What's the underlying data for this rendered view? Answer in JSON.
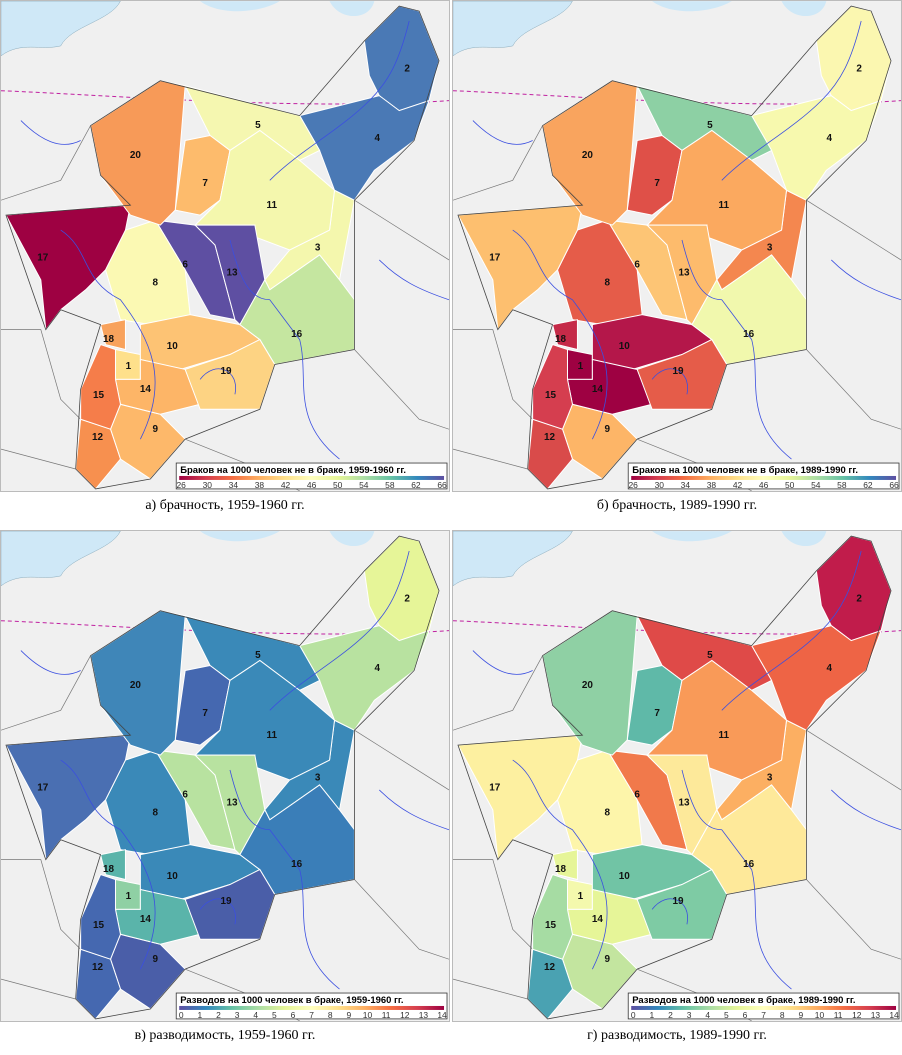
{
  "panels": [
    {
      "caption": "а) брачность, 1959-1960 гг.",
      "legend": {
        "title": "Браков на 1000 человек не в браке, 1959-1960 гг.",
        "ticks": [
          "26",
          "30",
          "34",
          "38",
          "42",
          "46",
          "50",
          "54",
          "58",
          "62",
          "66"
        ],
        "scale": "red-to-blue"
      },
      "regions": {
        "1": "#fee08b",
        "2": "#4a79b5",
        "3": "#f4f7ad",
        "4": "#4a79b5",
        "5": "#f5f7b0",
        "6": "#5e4fa2",
        "7": "#fdbb6c",
        "8": "#fbf9b3",
        "9": "#fdb86a",
        "10": "#fdc374",
        "11": "#f4f7ad",
        "12": "#f7904f",
        "13": "#5e4fa2",
        "14": "#fdb567",
        "15": "#f57d4a",
        "16": "#c5e6a0",
        "17": "#9e0142",
        "18": "#f8a25c",
        "19": "#fdd383",
        "20": "#f79a58"
      }
    },
    {
      "caption": "б) брачность, 1989-1990 гг.",
      "legend": {
        "title": "Браков на 1000 человек не в браке, 1989-1990 гг.",
        "ticks": [
          "26",
          "30",
          "34",
          "38",
          "42",
          "46",
          "50",
          "54",
          "58",
          "62",
          "66"
        ],
        "scale": "red-to-blue"
      },
      "regions": {
        "1": "#9e0142",
        "2": "#fbf7b0",
        "3": "#f4874f",
        "4": "#f7f9ae",
        "5": "#8dd0a4",
        "6": "#fdc575",
        "7": "#df5048",
        "8": "#e55c49",
        "9": "#fdb567",
        "10": "#b4174a",
        "11": "#fba95f",
        "12": "#d94b4a",
        "13": "#fdbb6c",
        "14": "#9e0142",
        "15": "#d53e4f",
        "16": "#f1f8ad",
        "17": "#fdbf6f",
        "18": "#c52a48",
        "19": "#e55c49",
        "20": "#f9a45e"
      }
    },
    {
      "caption": "в) разводимость, 1959-1960 гг.",
      "legend": {
        "title": "Разводов на 1000 человек в браке, 1959-1960 гг.",
        "ticks": [
          "0",
          "1",
          "2",
          "3",
          "4",
          "5",
          "6",
          "7",
          "8",
          "9",
          "10",
          "11",
          "12",
          "13",
          "14"
        ],
        "scale": "blue-to-red"
      },
      "regions": {
        "1": "#8fd0a4",
        "2": "#e6f598",
        "3": "#3a89b8",
        "4": "#b8e2a0",
        "5": "#3a89b8",
        "6": "#b8e2a0",
        "7": "#4568b0",
        "8": "#3a89b8",
        "9": "#4a5ea8",
        "10": "#3a89b8",
        "11": "#3a89b8",
        "12": "#4568b0",
        "13": "#b8e2a0",
        "14": "#5ab4aa",
        "15": "#4568b0",
        "16": "#3a7eb8",
        "17": "#4a6fb2",
        "18": "#5ab4aa",
        "19": "#4a5ea8",
        "20": "#3f86b8"
      }
    },
    {
      "caption": "г) разводимость, 1989-1990 гг.",
      "legend": {
        "title": "Разводов на 1000 человек в браке, 1989-1990 гг.",
        "ticks": [
          "0",
          "1",
          "2",
          "3",
          "4",
          "5",
          "6",
          "7",
          "8",
          "9",
          "10",
          "11",
          "12",
          "13",
          "14"
        ],
        "scale": "blue-to-red"
      },
      "regions": {
        "1": "#f4f9ad",
        "2": "#c11c4b",
        "3": "#fcaf62",
        "4": "#ee6445",
        "5": "#df4a48",
        "6": "#f1794b",
        "7": "#5fb9a8",
        "8": "#fdf5aa",
        "9": "#c3e59f",
        "10": "#71c4a5",
        "11": "#f99a58",
        "12": "#4aa2b2",
        "13": "#fde99a",
        "14": "#e6f598",
        "15": "#a6dca3",
        "16": "#fee99a",
        "17": "#fdf0a0",
        "18": "#e6f598",
        "19": "#7ecba4",
        "20": "#8fd0a4"
      }
    }
  ],
  "colors": {
    "land": "#f0f0f0",
    "sea": "#cfe8f7",
    "river": "#3b4fe0",
    "boundary_line": "#c020a0"
  }
}
